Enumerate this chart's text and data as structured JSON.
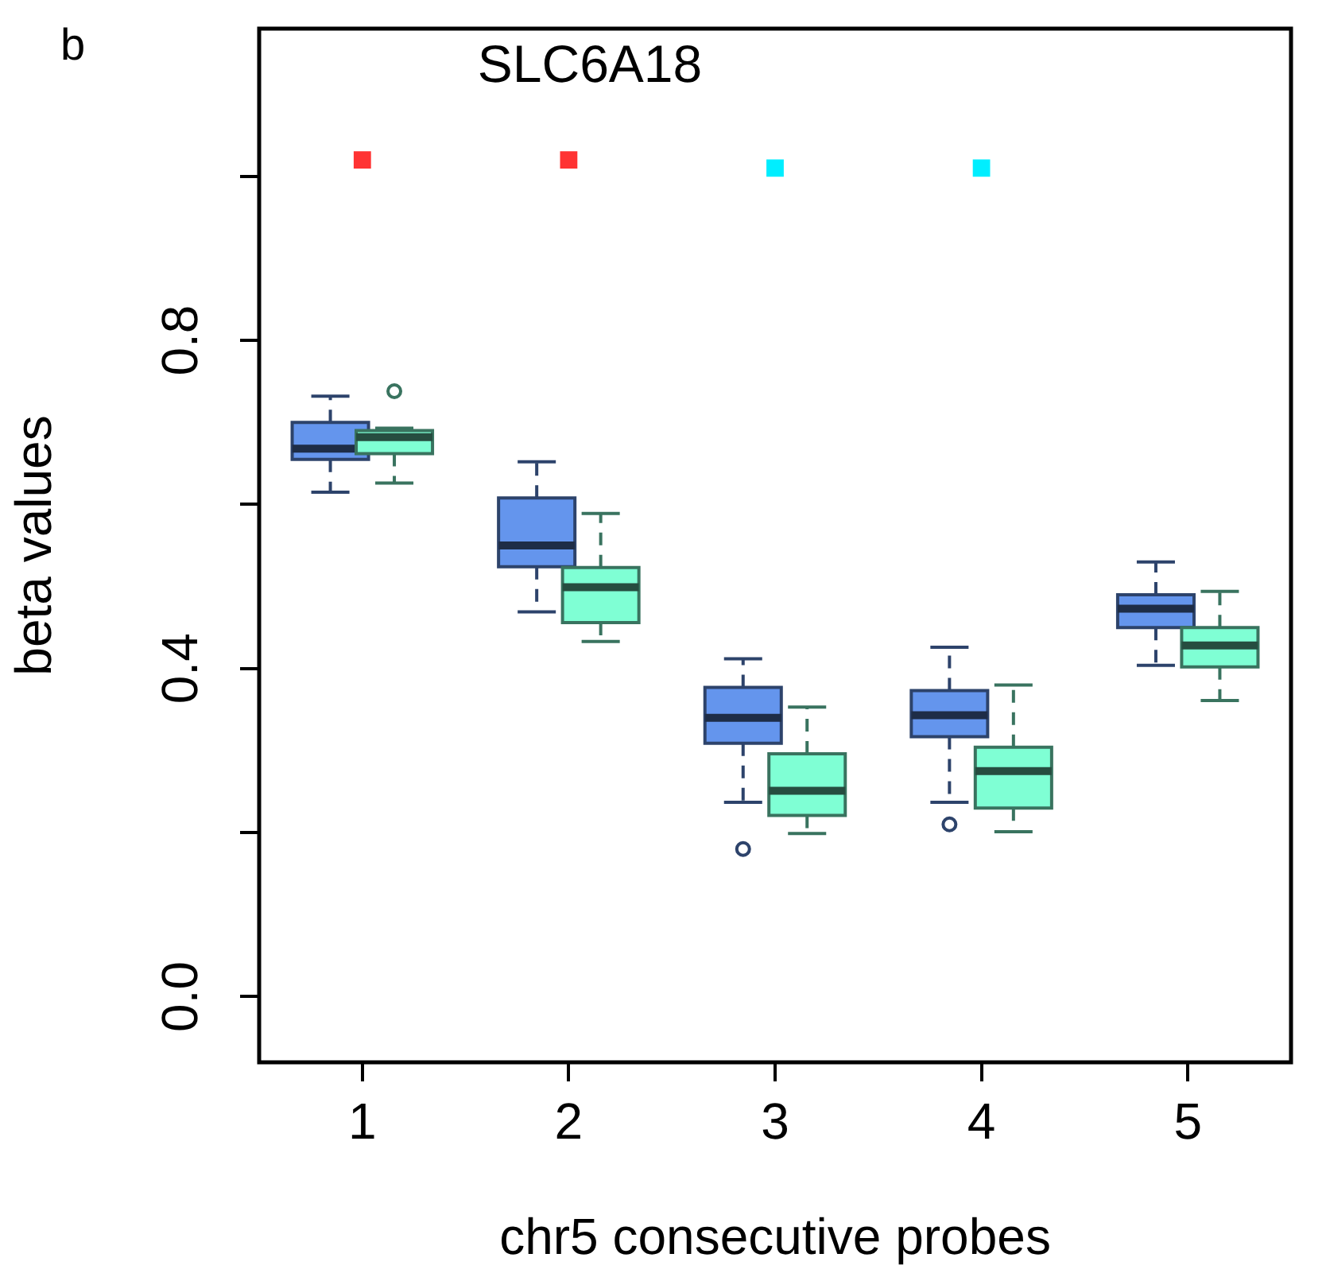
{
  "chart_data": {
    "type": "box",
    "title": "SLC6A18",
    "xlabel": "chr5 consecutive probes",
    "ylabel": "beta values",
    "annotations": [
      "b"
    ],
    "categories": [
      "1",
      "2",
      "3",
      "4",
      "5"
    ],
    "ylim": [
      -0.08,
      1.18
    ],
    "yticks": [
      {
        "value": 0,
        "label": "0.0"
      },
      {
        "value": 0.2,
        "label": null
      },
      0.4,
      {
        "value": 0.6,
        "label": null
      },
      0.8,
      {
        "value": 1.0,
        "label": null
      }
    ],
    "grid": false,
    "legend": false,
    "marker": "square",
    "series": [
      {
        "color": "#6495ed",
        "boxes": [
          {
            "low": 0.615,
            "q1": 0.655,
            "median": 0.668,
            "q3": 0.7,
            "high": 0.732
          },
          {
            "low": 0.469,
            "q1": 0.524,
            "median": 0.55,
            "q3": 0.608,
            "high": 0.652
          },
          {
            "low": 0.237,
            "q1": 0.309,
            "median": 0.34,
            "q3": 0.377,
            "high": 0.412,
            "outliers": [
              0.18
            ]
          },
          {
            "low": 0.237,
            "q1": 0.317,
            "median": 0.343,
            "q3": 0.373,
            "high": 0.426,
            "outliers": [
              0.21
            ]
          },
          {
            "low": 0.404,
            "q1": 0.45,
            "median": 0.473,
            "q3": 0.49,
            "high": 0.53
          }
        ]
      },
      {
        "color": "#7fffd4",
        "boxes": [
          {
            "low": 0.626,
            "q1": 0.662,
            "median": 0.682,
            "q3": 0.69,
            "high": 0.693,
            "outliers": [
              0.738
            ]
          },
          {
            "low": 0.433,
            "q1": 0.456,
            "median": 0.499,
            "q3": 0.523,
            "high": 0.589
          },
          {
            "low": 0.199,
            "q1": 0.221,
            "median": 0.251,
            "q3": 0.296,
            "high": 0.353
          },
          {
            "low": 0.201,
            "q1": 0.23,
            "median": 0.275,
            "q3": 0.304,
            "high": 0.38
          },
          {
            "low": 0.361,
            "q1": 0.402,
            "median": 0.428,
            "q3": 0.45,
            "high": 0.494
          }
        ]
      },
      {
        "type": "scatter",
        "color": "#ff3333",
        "x": [
          "1",
          "2"
        ],
        "values": [
          1.02,
          1.02
        ]
      },
      {
        "type": "scatter",
        "color": "#00eeff",
        "x": [
          "3",
          "4"
        ],
        "values": [
          1.01,
          1.01
        ]
      }
    ]
  }
}
